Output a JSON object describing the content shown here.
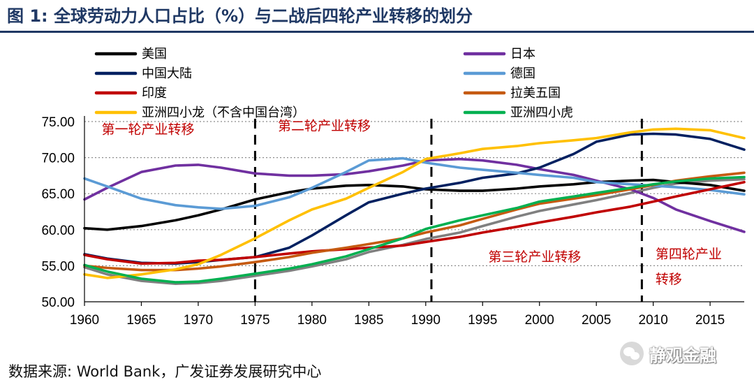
{
  "figure_title": "图 1: 全球劳动力人口占比（%）与二战后四轮产业转移的划分",
  "source_text": "数据来源: World Bank，广发证券发展研究中心",
  "watermark_text": "静观金融",
  "chart_data": {
    "type": "line",
    "title": "全球劳动力人口占比（%）",
    "xlabel": "",
    "ylabel": "",
    "xlim": [
      1960,
      2018
    ],
    "ylim": [
      50,
      75
    ],
    "x_ticks": [
      1960,
      1965,
      1970,
      1975,
      1980,
      1985,
      1990,
      1995,
      2000,
      2005,
      2010,
      2015
    ],
    "y_ticks": [
      50,
      55,
      60,
      65,
      70,
      75
    ],
    "y_tick_labels": [
      "50.00",
      "55.00",
      "60.00",
      "65.00",
      "70.00",
      "75.00"
    ],
    "grid": "horizontal-dotted",
    "legend_position": "top",
    "series": [
      {
        "name": "美国",
        "color": "#000000",
        "x": [
          1960,
          1962,
          1965,
          1968,
          1970,
          1972,
          1975,
          1978,
          1980,
          1983,
          1985,
          1988,
          1990,
          1993,
          1995,
          1998,
          2000,
          2003,
          2005,
          2008,
          2010,
          2012,
          2015,
          2018
        ],
        "y": [
          60.2,
          60.0,
          60.5,
          61.3,
          62.0,
          62.8,
          64.2,
          65.2,
          65.7,
          66.1,
          66.2,
          66.0,
          65.6,
          65.4,
          65.4,
          65.7,
          66.0,
          66.3,
          66.6,
          66.8,
          66.9,
          66.6,
          66.2,
          65.4
        ]
      },
      {
        "name": "日本",
        "color": "#7030a0",
        "x": [
          1960,
          1962,
          1965,
          1968,
          1970,
          1972,
          1975,
          1978,
          1980,
          1983,
          1985,
          1988,
          1990,
          1993,
          1995,
          1998,
          2000,
          2003,
          2005,
          2008,
          2010,
          2012,
          2015,
          2018
        ],
        "y": [
          64.2,
          65.8,
          68.0,
          68.9,
          69.0,
          68.6,
          67.8,
          67.5,
          67.5,
          67.7,
          68.1,
          68.9,
          69.6,
          69.8,
          69.6,
          69.0,
          68.4,
          67.6,
          66.8,
          65.6,
          64.4,
          62.8,
          61.2,
          59.7
        ]
      },
      {
        "name": "中国大陆",
        "color": "#002060",
        "x": [
          1960,
          1962,
          1965,
          1968,
          1970,
          1972,
          1975,
          1978,
          1980,
          1983,
          1985,
          1988,
          1990,
          1993,
          1995,
          1998,
          2000,
          2003,
          2005,
          2008,
          2010,
          2012,
          2015,
          2018
        ],
        "y": [
          56.6,
          56.0,
          55.4,
          55.3,
          55.5,
          55.8,
          56.2,
          57.5,
          59.2,
          62.0,
          63.8,
          65.0,
          65.7,
          66.5,
          67.2,
          67.8,
          68.6,
          70.5,
          72.2,
          73.2,
          73.3,
          73.2,
          72.6,
          71.1
        ]
      },
      {
        "name": "德国",
        "color": "#5b9bd5",
        "x": [
          1960,
          1962,
          1965,
          1968,
          1970,
          1972,
          1975,
          1978,
          1980,
          1983,
          1985,
          1988,
          1990,
          1993,
          1995,
          1998,
          2000,
          2003,
          2005,
          2008,
          2010,
          2012,
          2015,
          2018
        ],
        "y": [
          67.1,
          66.0,
          64.3,
          63.4,
          63.1,
          62.9,
          63.3,
          64.5,
          65.8,
          68.0,
          69.6,
          69.9,
          69.3,
          68.6,
          68.3,
          67.9,
          67.6,
          67.2,
          66.6,
          66.3,
          66.1,
          65.9,
          65.5,
          64.9
        ]
      },
      {
        "name": "印度",
        "color": "#c00000",
        "x": [
          1960,
          1962,
          1965,
          1968,
          1970,
          1972,
          1975,
          1978,
          1980,
          1983,
          1985,
          1988,
          1990,
          1993,
          1995,
          1998,
          2000,
          2003,
          2005,
          2008,
          2010,
          2012,
          2015,
          2018
        ],
        "y": [
          56.5,
          55.9,
          55.3,
          55.4,
          55.7,
          55.8,
          56.2,
          56.7,
          57.0,
          57.3,
          57.5,
          57.8,
          58.3,
          59.0,
          59.6,
          60.4,
          61.0,
          61.8,
          62.4,
          63.2,
          63.9,
          64.6,
          65.6,
          66.6
        ]
      },
      {
        "name": "拉美五国",
        "color": "#c55a11",
        "x": [
          1960,
          1962,
          1965,
          1968,
          1970,
          1972,
          1975,
          1978,
          1980,
          1983,
          1985,
          1988,
          1990,
          1993,
          1995,
          1998,
          2000,
          2003,
          2005,
          2008,
          2010,
          2012,
          2015,
          2018
        ],
        "y": [
          55.0,
          54.7,
          54.4,
          54.4,
          54.6,
          54.9,
          55.5,
          56.2,
          56.8,
          57.5,
          58.0,
          58.8,
          59.6,
          60.6,
          61.5,
          62.8,
          63.6,
          64.3,
          64.8,
          65.6,
          66.2,
          66.8,
          67.4,
          67.9
        ]
      },
      {
        "name": "亚洲四小龙（不含中国台湾）",
        "color": "#ffc000",
        "x": [
          1960,
          1962,
          1965,
          1968,
          1970,
          1972,
          1975,
          1978,
          1980,
          1983,
          1985,
          1988,
          1990,
          1993,
          1995,
          1998,
          2000,
          2003,
          2005,
          2008,
          2010,
          2012,
          2015,
          2018
        ],
        "y": [
          53.8,
          53.3,
          53.8,
          54.5,
          55.2,
          56.5,
          58.8,
          61.3,
          62.8,
          64.3,
          65.8,
          68.0,
          69.8,
          70.6,
          71.2,
          71.6,
          72.0,
          72.4,
          72.7,
          73.5,
          73.9,
          74.0,
          73.8,
          72.7
        ]
      },
      {
        "name": "亚洲四小虎",
        "color": "#00b050",
        "x": [
          1960,
          1962,
          1965,
          1968,
          1970,
          1972,
          1975,
          1978,
          1980,
          1983,
          1985,
          1988,
          1990,
          1993,
          1995,
          1998,
          2000,
          2003,
          2005,
          2008,
          2010,
          2012,
          2015,
          2018
        ],
        "y": [
          55.1,
          54.2,
          53.2,
          52.7,
          52.8,
          53.2,
          53.9,
          54.6,
          55.2,
          56.3,
          57.3,
          58.8,
          60.1,
          61.3,
          62.0,
          63.0,
          63.9,
          64.6,
          65.1,
          65.8,
          66.3,
          66.7,
          67.1,
          67.3
        ]
      },
      {
        "name": "",
        "color": "#808080",
        "x": [
          1960,
          1962,
          1965,
          1968,
          1970,
          1972,
          1975,
          1978,
          1980,
          1983,
          1985,
          1988,
          1990,
          1993,
          1995,
          1998,
          2000,
          2003,
          2005,
          2008,
          2010,
          2012,
          2015,
          2018
        ],
        "y": [
          54.8,
          53.8,
          52.9,
          52.5,
          52.6,
          52.9,
          53.6,
          54.3,
          54.9,
          55.9,
          56.9,
          57.9,
          58.7,
          59.6,
          60.5,
          61.8,
          62.6,
          63.5,
          64.1,
          65.1,
          65.8,
          66.4,
          66.8,
          67.0
        ]
      }
    ],
    "dividers": [
      1975,
      1990.5,
      2009
    ],
    "annotations": [
      {
        "text": "第一轮产业转移",
        "x": 1961.5,
        "y": 73.3
      },
      {
        "text": "第二轮产业转移",
        "x": 1977.0,
        "y": 73.8
      },
      {
        "text": "第三轮产业转移",
        "x": 1995.5,
        "y": 55.6
      },
      {
        "text": "第四轮产业",
        "x": 2010.2,
        "y": 56.0
      },
      {
        "text": "转移",
        "x": 2010.2,
        "y": 52.5
      }
    ]
  }
}
